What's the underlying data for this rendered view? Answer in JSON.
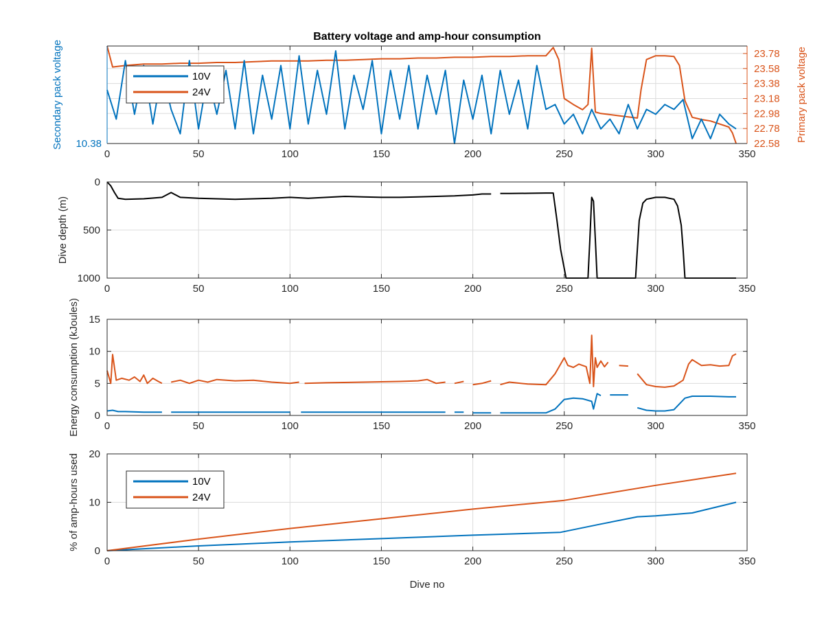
{
  "colors": {
    "c10V": "#0072bd",
    "c24V": "#d95319",
    "depth": "#000000",
    "grid": "#dcdcdc",
    "axis": "#262626"
  },
  "chart_data": [
    {
      "type": "line",
      "title": "Battery voltage and amp-hour consumption",
      "xlabel": "",
      "ylabel": "Secondary pack voltage",
      "ylabel_right": "Primary pack voltage",
      "xlim": [
        0,
        350
      ],
      "x_ticks": [
        "0",
        "50",
        "100",
        "150",
        "200",
        "250",
        "300",
        "350"
      ],
      "ylim_left": [
        10.38,
        10.58
      ],
      "y_ticks_left": [
        "10.38"
      ],
      "ylim_right": [
        22.58,
        23.88
      ],
      "y_ticks_right": [
        "22.58",
        "22.78",
        "22.98",
        "23.18",
        "23.38",
        "23.58",
        "23.78"
      ],
      "grid": true,
      "legend": {
        "position": "top-left",
        "entries": [
          "10V",
          "24V"
        ]
      },
      "series": [
        {
          "name": "10V",
          "axis": "left",
          "x": [
            0,
            5,
            10,
            15,
            20,
            25,
            30,
            35,
            40,
            45,
            50,
            55,
            60,
            65,
            70,
            75,
            80,
            85,
            90,
            95,
            100,
            105,
            110,
            115,
            120,
            125,
            130,
            135,
            140,
            145,
            150,
            155,
            160,
            165,
            170,
            175,
            180,
            185,
            190,
            195,
            200,
            205,
            210,
            215,
            220,
            225,
            230,
            235,
            240,
            245,
            250,
            255,
            260,
            265,
            270,
            275,
            280,
            285,
            290,
            295,
            300,
            305,
            310,
            315,
            320,
            325,
            330,
            335,
            340,
            344
          ],
          "values": [
            10.49,
            10.43,
            10.55,
            10.44,
            10.54,
            10.42,
            10.53,
            10.45,
            10.4,
            10.55,
            10.41,
            10.52,
            10.44,
            10.53,
            10.41,
            10.55,
            10.4,
            10.52,
            10.43,
            10.54,
            10.41,
            10.56,
            10.42,
            10.53,
            10.44,
            10.57,
            10.41,
            10.52,
            10.45,
            10.55,
            10.4,
            10.53,
            10.43,
            10.54,
            10.41,
            10.52,
            10.44,
            10.53,
            10.38,
            10.51,
            10.43,
            10.52,
            10.4,
            10.53,
            10.44,
            10.51,
            10.41,
            10.54,
            10.45,
            10.46,
            10.42,
            10.44,
            10.4,
            10.45,
            10.41,
            10.43,
            10.4,
            10.46,
            10.41,
            10.45,
            10.44,
            10.46,
            10.45,
            10.47,
            10.39,
            10.43,
            10.39,
            10.44,
            10.42,
            10.41
          ]
        },
        {
          "name": "24V",
          "axis": "right",
          "x": [
            0,
            3,
            10,
            20,
            30,
            40,
            50,
            60,
            70,
            80,
            90,
            100,
            110,
            120,
            130,
            140,
            150,
            160,
            170,
            180,
            190,
            200,
            210,
            220,
            230,
            240,
            244,
            247,
            250,
            255,
            260,
            263,
            265,
            267,
            270,
            280,
            290,
            292,
            295,
            300,
            305,
            310,
            313,
            316,
            320,
            325,
            330,
            340,
            342,
            344
          ],
          "values": [
            23.88,
            23.6,
            23.62,
            23.64,
            23.64,
            23.65,
            23.65,
            23.66,
            23.66,
            23.67,
            23.68,
            23.68,
            23.68,
            23.69,
            23.69,
            23.7,
            23.71,
            23.71,
            23.72,
            23.72,
            23.73,
            23.73,
            23.74,
            23.74,
            23.75,
            23.75,
            23.86,
            23.7,
            23.18,
            23.1,
            23.03,
            23.1,
            23.85,
            23.0,
            22.98,
            22.95,
            22.92,
            23.3,
            23.7,
            23.75,
            23.75,
            23.74,
            23.62,
            23.15,
            22.93,
            22.9,
            22.88,
            22.8,
            22.72,
            22.58
          ]
        }
      ]
    },
    {
      "type": "line",
      "xlabel": "",
      "ylabel": "Dive depth (m)",
      "xlim": [
        0,
        350
      ],
      "x_ticks": [
        "0",
        "50",
        "100",
        "150",
        "200",
        "250",
        "300",
        "350"
      ],
      "ylim": [
        0,
        1000
      ],
      "y_reversed": true,
      "y_ticks": [
        "0",
        "500",
        "1000"
      ],
      "grid": true,
      "series": [
        {
          "name": "",
          "x": [
            0,
            2,
            4,
            6,
            10,
            20,
            30,
            35,
            40,
            50,
            60,
            70,
            80,
            90,
            100,
            110,
            120,
            130,
            140,
            150,
            160,
            170,
            180,
            190,
            200,
            205,
            210,
            null,
            215,
            220,
            230,
            240,
            244,
            246,
            248,
            251,
            255,
            260,
            263,
            264,
            265,
            266,
            267,
            268,
            270,
            280,
            289,
            290,
            291,
            293,
            295,
            300,
            305,
            310,
            312,
            314,
            315,
            316,
            320,
            330,
            340,
            344
          ],
          "values": [
            0,
            40,
            110,
            170,
            180,
            175,
            160,
            110,
            160,
            170,
            175,
            180,
            175,
            170,
            160,
            170,
            160,
            150,
            155,
            160,
            160,
            155,
            150,
            145,
            135,
            125,
            125,
            null,
            120,
            120,
            118,
            115,
            115,
            400,
            700,
            1000,
            1000,
            1000,
            1000,
            600,
            160,
            200,
            600,
            1000,
            1000,
            1000,
            1000,
            700,
            400,
            220,
            180,
            160,
            160,
            180,
            250,
            450,
            700,
            1000,
            1000,
            1000,
            1000,
            1000
          ]
        }
      ]
    },
    {
      "type": "line",
      "xlabel": "",
      "ylabel": "Energy consumption (kJoules)",
      "xlim": [
        0,
        350
      ],
      "x_ticks": [
        "0",
        "50",
        "100",
        "150",
        "200",
        "250",
        "300",
        "350"
      ],
      "ylim": [
        0,
        15
      ],
      "y_ticks": [
        "0",
        "5",
        "10",
        "15"
      ],
      "grid": true,
      "series": [
        {
          "name": "10V",
          "x": [
            0,
            3,
            6,
            10,
            20,
            30,
            null,
            35,
            50,
            80,
            100,
            null,
            106,
            130,
            160,
            185,
            null,
            190,
            195,
            null,
            200,
            210,
            null,
            215,
            240,
            245,
            250,
            255,
            260,
            265,
            266,
            268,
            270,
            null,
            275,
            285,
            null,
            290,
            295,
            300,
            305,
            310,
            316,
            320,
            330,
            340,
            344
          ],
          "values": [
            0.7,
            0.8,
            0.6,
            0.6,
            0.5,
            0.5,
            null,
            0.5,
            0.5,
            0.5,
            0.5,
            null,
            0.5,
            0.5,
            0.5,
            0.5,
            null,
            0.5,
            0.5,
            null,
            0.4,
            0.4,
            null,
            0.4,
            0.4,
            1.0,
            2.5,
            2.7,
            2.6,
            2.2,
            1.0,
            3.4,
            3.1,
            null,
            3.2,
            3.2,
            null,
            1.2,
            0.8,
            0.7,
            0.7,
            0.9,
            2.7,
            3.0,
            3.0,
            2.9,
            2.9
          ]
        },
        {
          "name": "24V",
          "x": [
            0,
            2,
            3,
            5,
            8,
            12,
            15,
            18,
            20,
            22,
            25,
            28,
            30,
            null,
            35,
            40,
            45,
            50,
            55,
            60,
            70,
            80,
            90,
            100,
            105,
            null,
            108,
            120,
            140,
            160,
            170,
            175,
            180,
            185,
            null,
            190,
            195,
            null,
            200,
            205,
            210,
            null,
            215,
            220,
            230,
            240,
            245,
            250,
            252,
            255,
            258,
            262,
            264,
            265,
            266,
            267,
            268,
            270,
            272,
            274,
            null,
            280,
            285,
            null,
            290,
            295,
            300,
            305,
            310,
            315,
            318,
            320,
            325,
            330,
            335,
            340,
            342,
            344
          ],
          "values": [
            7.0,
            5.0,
            9.5,
            5.5,
            5.8,
            5.5,
            6.0,
            5.3,
            6.3,
            5.0,
            5.8,
            5.3,
            5.0,
            null,
            5.2,
            5.5,
            5.0,
            5.5,
            5.2,
            5.6,
            5.4,
            5.5,
            5.2,
            5.0,
            5.2,
            null,
            5.0,
            5.1,
            5.2,
            5.3,
            5.4,
            5.6,
            5.0,
            5.2,
            null,
            5.0,
            5.3,
            null,
            4.8,
            5.0,
            5.4,
            null,
            4.8,
            5.2,
            4.9,
            4.8,
            6.5,
            9.0,
            7.8,
            7.5,
            8.0,
            7.6,
            5.0,
            12.5,
            4.5,
            9.0,
            7.5,
            8.5,
            7.6,
            8.3,
            null,
            7.8,
            7.7,
            null,
            6.5,
            4.8,
            4.5,
            4.4,
            4.6,
            5.5,
            8.0,
            8.7,
            7.8,
            7.9,
            7.7,
            7.8,
            9.3,
            9.6
          ]
        }
      ]
    },
    {
      "type": "line",
      "xlabel": "Dive no",
      "ylabel": "% of amp-hours used",
      "xlim": [
        0,
        350
      ],
      "x_ticks": [
        "0",
        "50",
        "100",
        "150",
        "200",
        "250",
        "300",
        "350"
      ],
      "ylim": [
        0,
        20
      ],
      "y_ticks": [
        "0",
        "10",
        "20"
      ],
      "grid": true,
      "legend": {
        "position": "top-left",
        "entries": [
          "10V",
          "24V"
        ]
      },
      "series": [
        {
          "name": "10V",
          "x": [
            0,
            50,
            100,
            150,
            200,
            248,
            270,
            290,
            300,
            320,
            344
          ],
          "values": [
            0,
            1.0,
            1.8,
            2.5,
            3.2,
            3.8,
            5.5,
            7.0,
            7.2,
            7.8,
            10.0
          ],
          "legend_label": "10V"
        },
        {
          "name": "24V",
          "x": [
            0,
            50,
            100,
            150,
            200,
            250,
            300,
            344
          ],
          "values": [
            0,
            2.4,
            4.6,
            6.6,
            8.6,
            10.4,
            13.5,
            16.0
          ],
          "legend_label": "24V"
        }
      ]
    }
  ]
}
